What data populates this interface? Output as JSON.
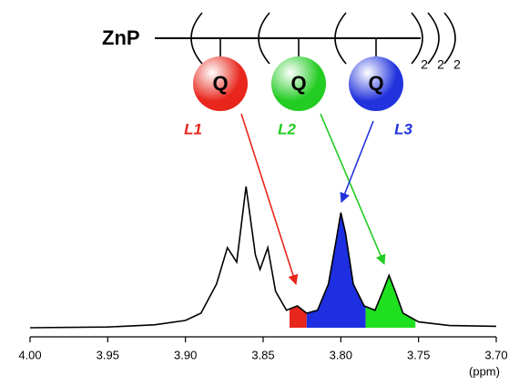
{
  "chart_data": {
    "type": "line",
    "scheme": {
      "core": "ZnP",
      "units": [
        {
          "label": "Q",
          "color": "#e8261c",
          "ligand": "L1"
        },
        {
          "label": "Q",
          "color": "#22cc22",
          "ligand": "L2"
        },
        {
          "label": "Q",
          "color": "#2233dd",
          "ligand": "L3"
        }
      ],
      "repeats": [
        "2",
        "2",
        "2"
      ]
    },
    "x_label": "(ppm)",
    "xlim": [
      4.0,
      3.7
    ],
    "xticks": [
      {
        "value": 4.0,
        "label": "4.00"
      },
      {
        "value": 3.95,
        "label": "3.95"
      },
      {
        "value": 3.9,
        "label": "3.90"
      },
      {
        "value": 3.85,
        "label": "3.85"
      },
      {
        "value": 3.8,
        "label": "3.80"
      },
      {
        "value": 3.75,
        "label": "3.75"
      },
      {
        "value": 3.7,
        "label": "3.70"
      }
    ],
    "ylim": [
      0,
      1
    ],
    "series": [
      {
        "color": "#000000",
        "x": [
          4.0,
          3.95,
          3.92,
          3.9,
          3.89,
          3.88,
          3.873,
          3.867,
          3.861,
          3.855,
          3.852,
          3.847,
          3.842,
          3.835,
          3.828,
          3.822,
          3.815,
          3.808,
          3.803,
          3.8,
          3.797,
          3.792,
          3.785,
          3.778,
          3.773,
          3.769,
          3.765,
          3.76,
          3.75,
          3.73,
          3.7
        ],
        "values": [
          0,
          0.005,
          0.02,
          0.05,
          0.1,
          0.3,
          0.55,
          0.45,
          0.97,
          0.5,
          0.4,
          0.55,
          0.25,
          0.12,
          0.15,
          0.1,
          0.12,
          0.3,
          0.6,
          0.79,
          0.65,
          0.3,
          0.15,
          0.12,
          0.25,
          0.36,
          0.25,
          0.1,
          0.04,
          0.015,
          0.01
        ]
      }
    ],
    "bands": [
      {
        "from": 3.833,
        "to": 3.822,
        "color": "#e8261c"
      },
      {
        "from": 3.822,
        "to": 3.784,
        "color": "#1d2fe0"
      },
      {
        "from": 3.784,
        "to": 3.752,
        "color": "#1fe01f"
      }
    ]
  }
}
